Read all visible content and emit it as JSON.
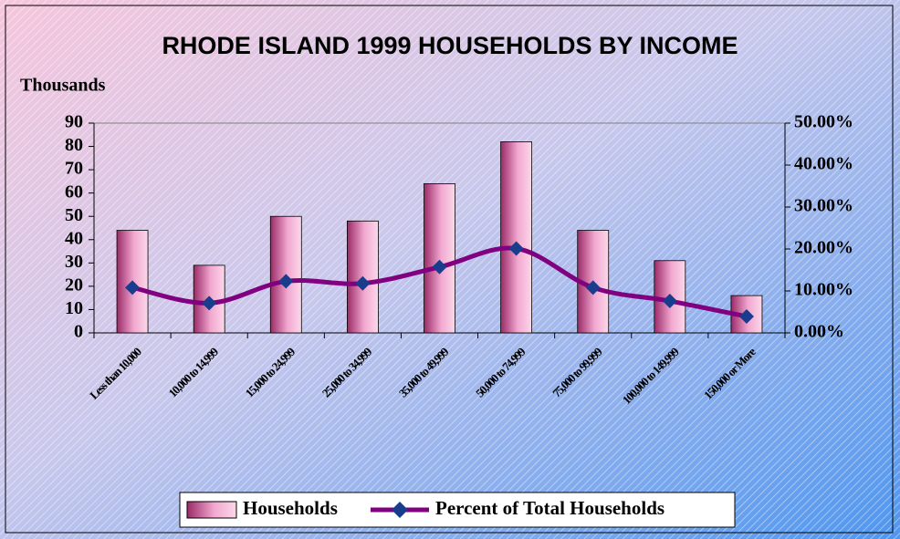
{
  "chart_data": {
    "type": "bar",
    "title": "RHODE ISLAND 1999 HOUSEHOLDS BY INCOME",
    "y_label": "Thousands",
    "categories": [
      "Less than 10,000",
      "10,000 to 14,999",
      "15,000 to 24,999",
      "25,000 to 34,999",
      "35,000 to 49,999",
      "50,000 to 74,999",
      "75,000 to 99,999",
      "100,000 to 149,999",
      "150,000 or More"
    ],
    "series": [
      {
        "name": "Households",
        "type": "bar",
        "color": "#e890c0",
        "values": [
          44,
          29,
          50,
          48,
          64,
          82,
          44,
          31,
          16
        ]
      },
      {
        "name": "Percent of Total Households",
        "type": "line",
        "axis": "y2",
        "color": "#800080",
        "marker_color": "#1a3c8c",
        "values": [
          10.8,
          7.1,
          12.3,
          11.8,
          15.7,
          20.1,
          10.8,
          7.6,
          3.9
        ]
      }
    ],
    "ylim": [
      0,
      90
    ],
    "yticks": [
      0,
      10,
      20,
      30,
      40,
      50,
      60,
      70,
      80,
      90
    ],
    "y2lim": [
      0,
      50
    ],
    "y2ticks": [
      {
        "value": 0,
        "label": "0.00%"
      },
      {
        "value": 10,
        "label": "10.00%"
      },
      {
        "value": 20,
        "label": "20.00%"
      },
      {
        "value": 30,
        "label": "30.00%"
      },
      {
        "value": 40,
        "label": "40.00%"
      },
      {
        "value": 50,
        "label": "50.00%"
      }
    ],
    "legend": "bottom"
  }
}
